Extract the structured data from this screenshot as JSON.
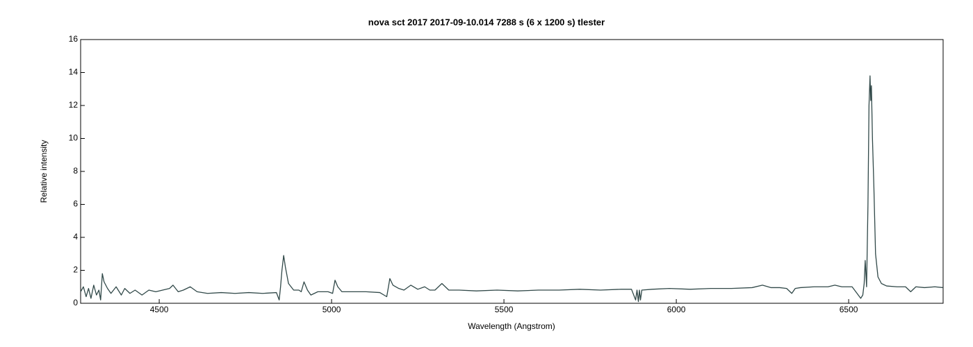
{
  "chart_data": {
    "type": "line",
    "title": "nova sct 2017   2017-09-10.014   7288 s (6 x 1200 s)   tlester",
    "x_label": "Wavelength (Angstrom)",
    "y_label": "Relative intensity",
    "xlim": [
      4272,
      6774
    ],
    "ylim": [
      0,
      16
    ],
    "xticks": [
      4500,
      5000,
      5500,
      6000,
      6500
    ],
    "yticks": [
      0,
      2,
      4,
      6,
      8,
      10,
      12,
      14,
      16
    ],
    "grid": false,
    "series": [
      {
        "color": "#304848",
        "x": [
          4272,
          4280,
          4288,
          4295,
          4302,
          4310,
          4318,
          4325,
          4330,
          4335,
          4340,
          4350,
          4360,
          4375,
          4390,
          4400,
          4415,
          4430,
          4450,
          4470,
          4490,
          4510,
          4530,
          4540,
          4555,
          4570,
          4590,
          4610,
          4640,
          4680,
          4720,
          4760,
          4800,
          4840,
          4848,
          4852,
          4856,
          4861,
          4866,
          4875,
          4890,
          4905,
          4912,
          4920,
          4930,
          4940,
          4960,
          4990,
          5003,
          5010,
          5018,
          5030,
          5060,
          5100,
          5140,
          5160,
          5165,
          5169,
          5178,
          5195,
          5210,
          5230,
          5250,
          5270,
          5285,
          5300,
          5320,
          5340,
          5370,
          5420,
          5480,
          5540,
          5600,
          5660,
          5720,
          5780,
          5840,
          5870,
          5882,
          5886,
          5890,
          5893,
          5896,
          5900,
          5930,
          5980,
          6040,
          6100,
          6160,
          6220,
          6250,
          6275,
          6300,
          6320,
          6335,
          6345,
          6360,
          6400,
          6440,
          6460,
          6480,
          6510,
          6535,
          6541,
          6545,
          6548,
          6552,
          6556,
          6559,
          6562,
          6564,
          6566,
          6569,
          6573,
          6578,
          6585,
          6595,
          6610,
          6640,
          6665,
          6680,
          6695,
          6720,
          6750,
          6774
        ],
        "values": [
          0.7,
          1.0,
          0.4,
          0.9,
          0.3,
          1.1,
          0.5,
          0.8,
          0.2,
          1.8,
          1.3,
          0.9,
          0.6,
          1.0,
          0.5,
          0.9,
          0.6,
          0.8,
          0.5,
          0.8,
          0.7,
          0.8,
          0.9,
          1.1,
          0.7,
          0.8,
          1.0,
          0.7,
          0.6,
          0.65,
          0.6,
          0.65,
          0.6,
          0.65,
          0.2,
          1.0,
          2.0,
          2.9,
          2.2,
          1.2,
          0.8,
          0.8,
          0.7,
          1.3,
          0.8,
          0.5,
          0.7,
          0.7,
          0.6,
          1.4,
          1.0,
          0.7,
          0.7,
          0.7,
          0.65,
          0.4,
          1.0,
          1.5,
          1.1,
          0.9,
          0.8,
          1.1,
          0.85,
          1.0,
          0.8,
          0.8,
          1.2,
          0.8,
          0.8,
          0.75,
          0.8,
          0.75,
          0.8,
          0.8,
          0.85,
          0.8,
          0.85,
          0.85,
          0.2,
          0.8,
          0.1,
          0.8,
          0.2,
          0.8,
          0.85,
          0.9,
          0.85,
          0.9,
          0.9,
          0.95,
          1.1,
          0.95,
          0.95,
          0.9,
          0.6,
          0.9,
          0.95,
          1.0,
          1.0,
          1.1,
          1.0,
          1.0,
          0.3,
          0.5,
          1.2,
          2.6,
          1.0,
          6.0,
          12.0,
          13.8,
          12.3,
          13.2,
          10.0,
          7.2,
          3.0,
          1.6,
          1.2,
          1.05,
          1.0,
          1.0,
          0.7,
          1.0,
          0.95,
          1.0,
          0.95
        ]
      }
    ]
  }
}
